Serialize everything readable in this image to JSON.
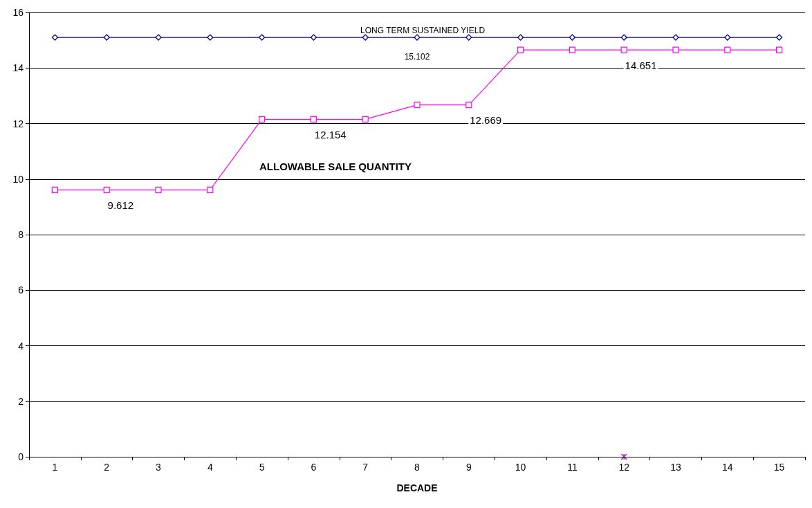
{
  "chart_data": {
    "type": "line",
    "xlabel": "DECADE",
    "categories": [
      "1",
      "2",
      "3",
      "4",
      "5",
      "6",
      "7",
      "8",
      "9",
      "10",
      "11",
      "12",
      "13",
      "14",
      "15"
    ],
    "series": [
      {
        "color": "#000080",
        "marker": "diamond",
        "values": [
          15.102,
          15.102,
          15.102,
          15.102,
          15.102,
          15.102,
          15.102,
          15.102,
          15.102,
          15.102,
          15.102,
          15.102,
          15.102,
          15.102,
          15.102
        ],
        "value_labels": [
          null,
          null,
          null,
          null,
          null,
          null,
          null,
          "15.102",
          null,
          null,
          null,
          null,
          null,
          null,
          null
        ]
      },
      {
        "color": "#ff00ff",
        "marker": "square",
        "values": [
          9.612,
          9.612,
          9.612,
          9.612,
          12.154,
          12.154,
          12.154,
          12.669,
          12.669,
          14.651,
          14.651,
          14.651,
          14.651,
          14.651,
          14.651
        ],
        "value_labels": [
          null,
          "9.612",
          null,
          null,
          null,
          "12.154",
          null,
          null,
          "12.669",
          null,
          null,
          "14.651",
          null,
          null,
          null
        ]
      },
      {
        "type": "scatter",
        "color": "#800080",
        "marker": "cross",
        "values": [
          null,
          null,
          null,
          null,
          null,
          null,
          null,
          null,
          null,
          null,
          null,
          0,
          null,
          null,
          null
        ]
      }
    ],
    "annotations": [
      "LONG TERM SUSTAINED YIELD",
      "ALLOWABLE SALE QUANTITY"
    ],
    "ylim": [
      0,
      16
    ],
    "yticks": [
      0,
      2,
      4,
      6,
      8,
      10,
      12,
      14,
      16
    ],
    "grid": "y"
  }
}
